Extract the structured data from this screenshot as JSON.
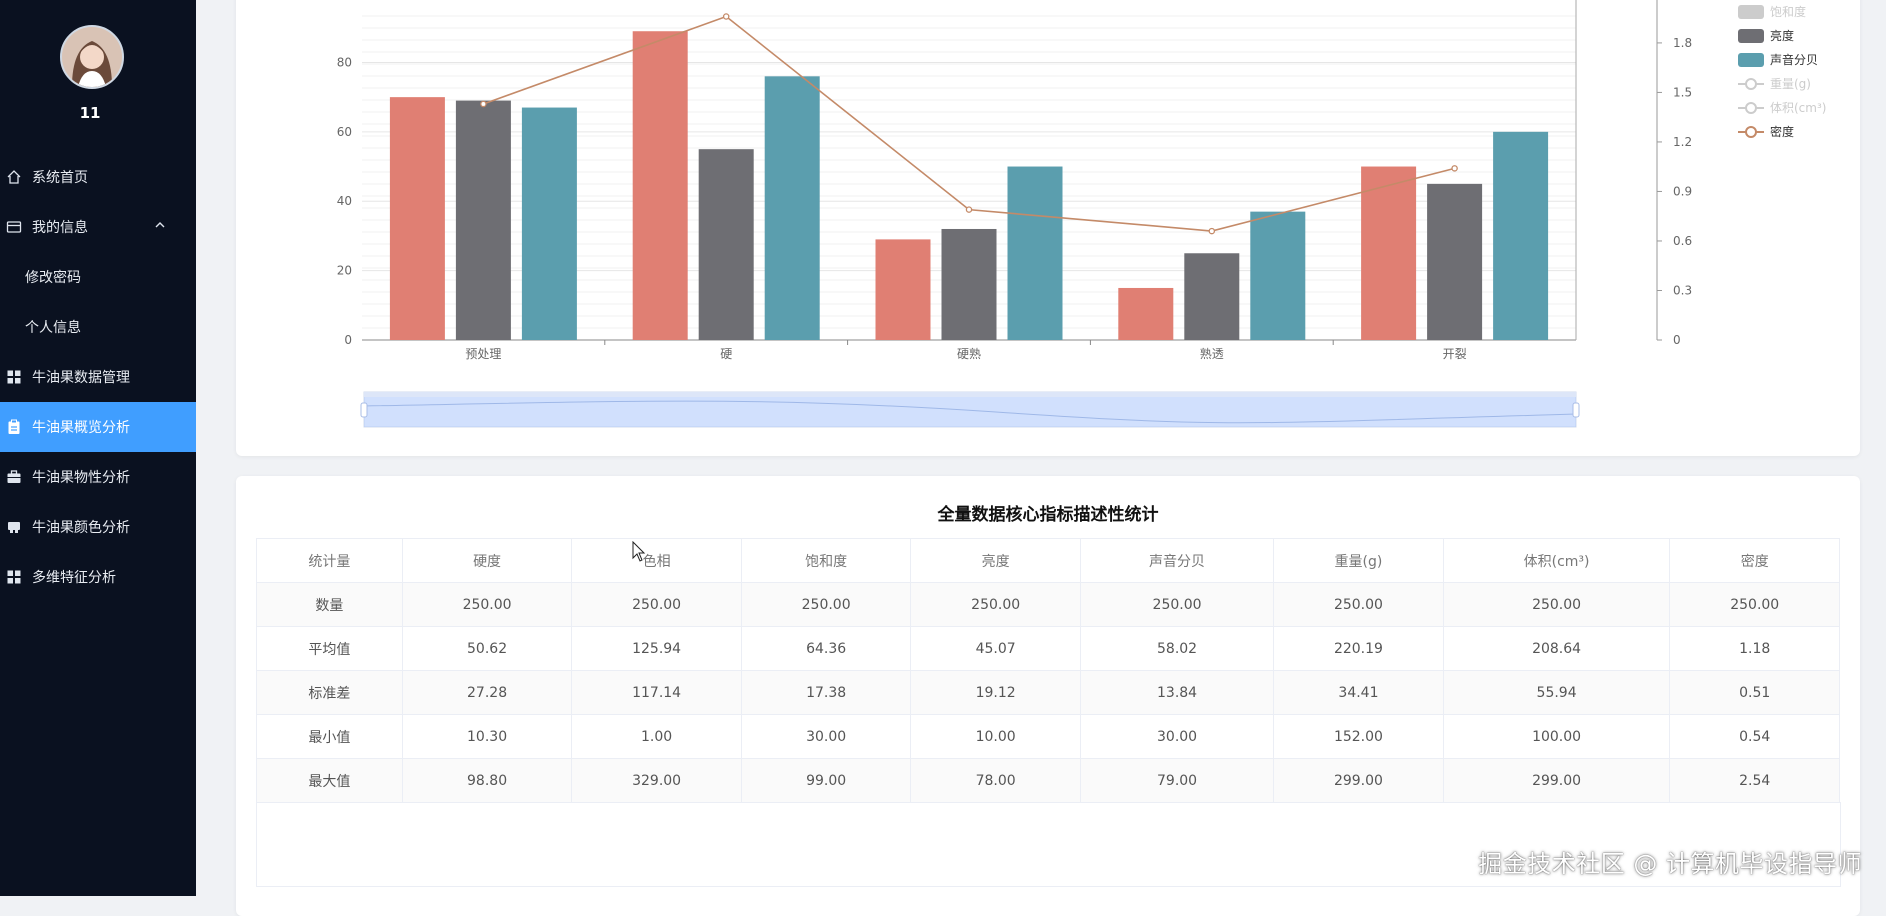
{
  "user": {
    "name": "11"
  },
  "sidebar": {
    "items": [
      {
        "label": "系统首页",
        "icon": "home-icon"
      },
      {
        "label": "我的信息",
        "icon": "card-icon",
        "expanded": true
      },
      {
        "label": "修改密码",
        "sub": true
      },
      {
        "label": "个人信息",
        "sub": true
      },
      {
        "label": "牛油果数据管理",
        "icon": "grid-icon"
      },
      {
        "label": "牛油果概览分析",
        "icon": "clipboard-icon",
        "active": true
      },
      {
        "label": "牛油果物性分析",
        "icon": "briefcase-icon"
      },
      {
        "label": "牛油果颜色分析",
        "icon": "stamp-icon"
      },
      {
        "label": "多维特征分析",
        "icon": "grid-icon"
      }
    ]
  },
  "chart_data": {
    "type": "bar",
    "categories": [
      "预处理",
      "硬",
      "硬熟",
      "熟透",
      "开裂"
    ],
    "series": [
      {
        "name": "",
        "type": "bar",
        "axis": "left",
        "color": "#e07f73",
        "values": [
          70,
          89,
          29,
          15,
          50
        ]
      },
      {
        "name": "亮度",
        "type": "bar",
        "axis": "left",
        "color": "#6e6e73",
        "values": [
          69,
          55,
          32,
          25,
          45
        ]
      },
      {
        "name": "声音分贝",
        "type": "bar",
        "axis": "left",
        "color": "#5b9eae",
        "values": [
          67,
          76,
          50,
          37,
          60
        ]
      },
      {
        "name": "密度",
        "type": "line",
        "axis": "right",
        "color": "#c48a68",
        "values": [
          1.43,
          1.96,
          0.79,
          0.66,
          1.04
        ]
      }
    ],
    "legend": [
      {
        "name": "饱和度",
        "kind": "bar",
        "state": "disabled"
      },
      {
        "name": "亮度",
        "kind": "bar",
        "state": "active",
        "color": "#6e6e73"
      },
      {
        "name": "声音分贝",
        "kind": "bar",
        "state": "active",
        "color": "#5b9eae"
      },
      {
        "name": "重量(g)",
        "kind": "line",
        "state": "disabled"
      },
      {
        "name": "体积(cm³)",
        "kind": "line",
        "state": "disabled"
      },
      {
        "name": "密度",
        "kind": "line",
        "state": "active",
        "color": "#c48a68"
      }
    ],
    "legend_position": "top-right",
    "y_left": {
      "ticks": [
        0,
        20,
        40,
        60,
        80
      ],
      "max": 98
    },
    "y_right": {
      "ticks": [
        "0",
        "0.3",
        "0.6",
        "0.9",
        "1.2",
        "1.5",
        "1.8"
      ],
      "max": 2.06
    },
    "grid": true,
    "datazoom": true
  },
  "table": {
    "title": "全量数据核心指标描述性统计",
    "columns": [
      "统计量",
      "硬度",
      "色相",
      "饱和度",
      "亮度",
      "声音分贝",
      "重量(g)",
      "体积(cm³)",
      "密度"
    ],
    "rows": [
      [
        "数量",
        "250.00",
        "250.00",
        "250.00",
        "250.00",
        "250.00",
        "250.00",
        "250.00",
        "250.00"
      ],
      [
        "平均值",
        "50.62",
        "125.94",
        "64.36",
        "45.07",
        "58.02",
        "220.19",
        "208.64",
        "1.18"
      ],
      [
        "标准差",
        "27.28",
        "117.14",
        "17.38",
        "19.12",
        "13.84",
        "34.41",
        "55.94",
        "0.51"
      ],
      [
        "最小值",
        "10.30",
        "1.00",
        "30.00",
        "10.00",
        "30.00",
        "152.00",
        "100.00",
        "0.54"
      ],
      [
        "最大值",
        "98.80",
        "329.00",
        "99.00",
        "78.00",
        "79.00",
        "299.00",
        "299.00",
        "2.54"
      ]
    ]
  },
  "watermark": "掘金技术社区 @ 计算机毕设指导师"
}
